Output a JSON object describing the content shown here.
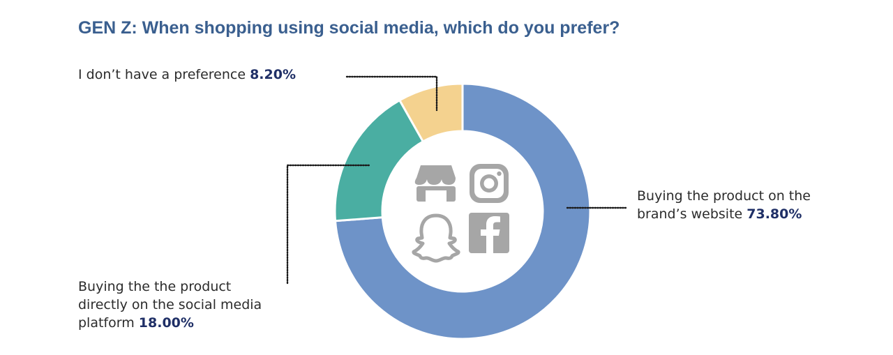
{
  "header": {
    "title": "GEN Z: When shopping using social media, which do you prefer?"
  },
  "chart_data": {
    "type": "pie",
    "variant": "donut",
    "title": "GEN Z: When shopping using social media, which do you prefer?",
    "slices": [
      {
        "label": "Buying the product on the brand’s website",
        "label_lines": [
          "Buying the product on the",
          "brand’s website"
        ],
        "value": 73.8,
        "value_label": "73.80%",
        "color": "#6e93c8"
      },
      {
        "label": "Buying the the product directly on the social media platform",
        "label_lines": [
          "Buying the the product",
          "directly on the social media",
          "platform"
        ],
        "value": 18.0,
        "value_label": "18.00%",
        "color": "#4aaea2"
      },
      {
        "label": "I don’t have a preference",
        "label_lines": [
          "I don’t have a preference"
        ],
        "value": 8.2,
        "value_label": "8.20%",
        "color": "#f4d28f"
      }
    ],
    "center_icons": [
      "storefront-icon",
      "instagram-icon",
      "snapchat-icon",
      "facebook-icon"
    ],
    "icon_color": "#a6a6a6"
  }
}
